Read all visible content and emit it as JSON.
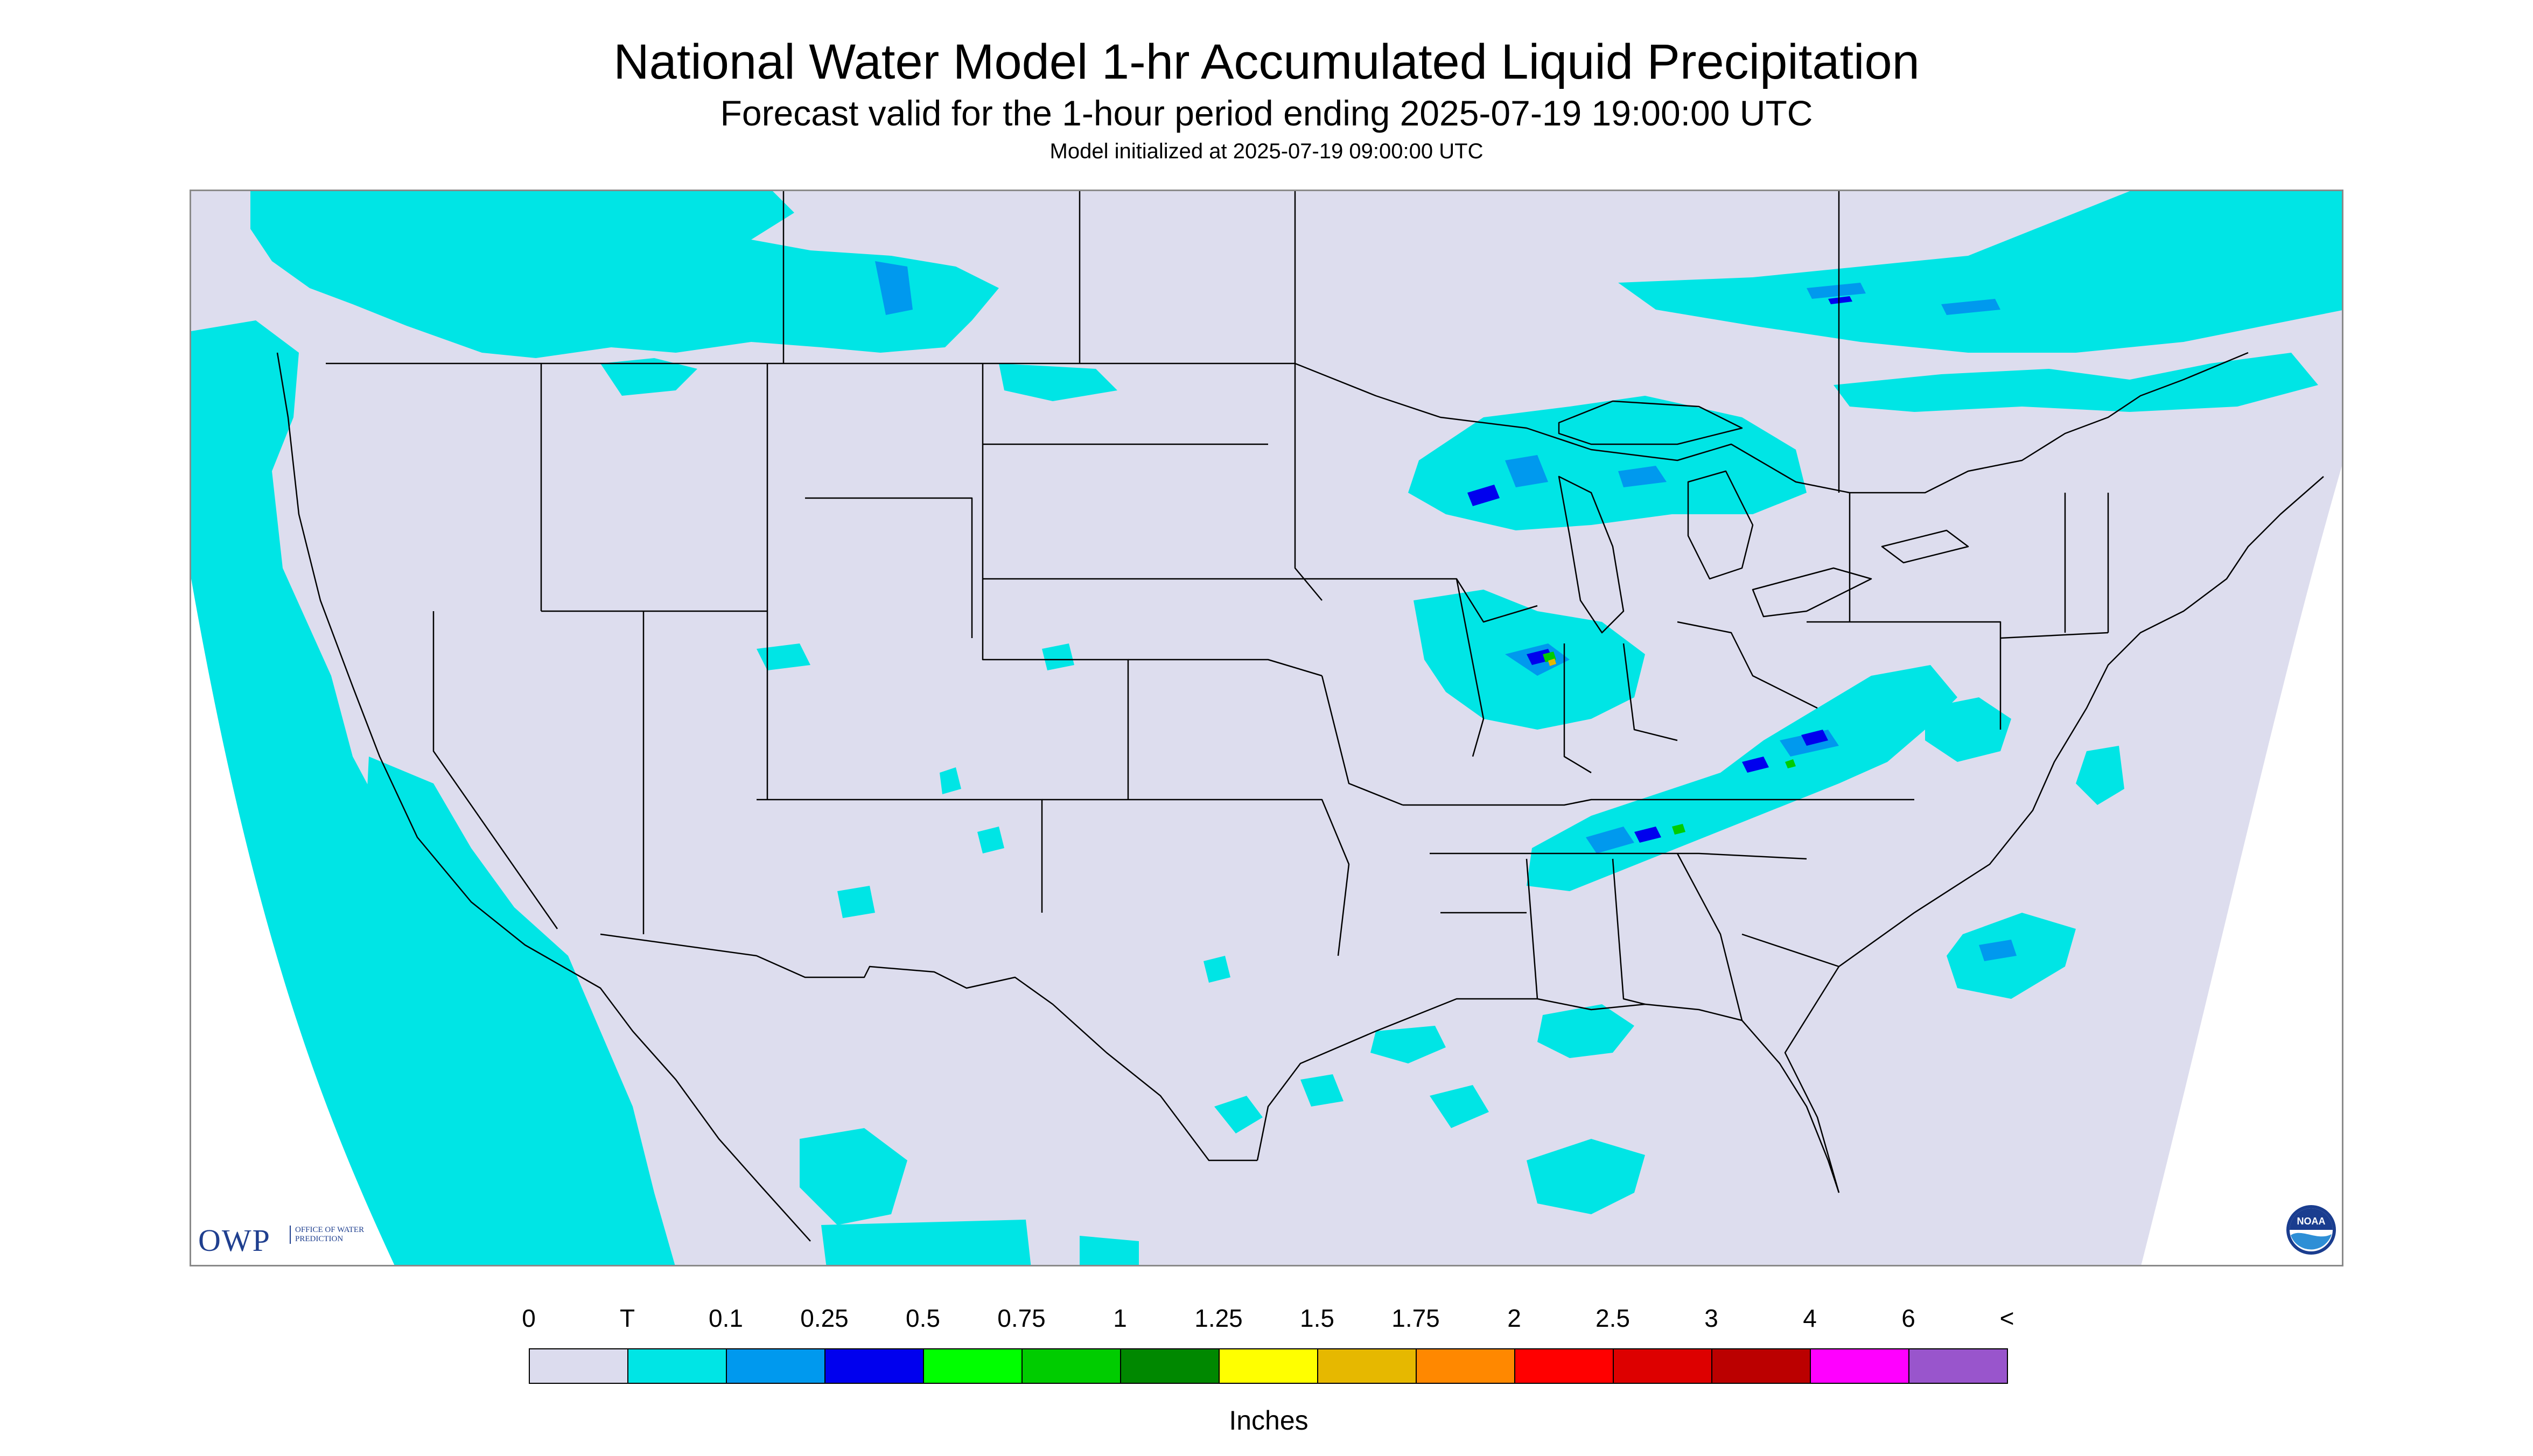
{
  "map": {
    "title": "National Water Model 1-hr Accumulated Liquid Precipitation",
    "subtitle": "Forecast valid for the 1-hour period ending 2025-07-19 19:00:00 UTC",
    "initialized": "Model initialized at 2025-07-19 09:00:00 UTC",
    "region": "CONUS",
    "background_color": "#ddddee",
    "outside_domain_color": "#ffffff",
    "boundary_color": "#000000"
  },
  "logos": {
    "owp_text": "OWP",
    "owp_subtext": "OFFICE OF WATER PREDICTION",
    "noaa_text": "NOAA"
  },
  "legend": {
    "units": "Inches",
    "labels": [
      "0",
      "T",
      "0.1",
      "0.25",
      "0.5",
      "0.75",
      "1",
      "1.25",
      "1.5",
      "1.75",
      "2",
      "2.5",
      "3",
      "4",
      "6",
      "<"
    ],
    "colors": [
      "#dcdcee",
      "#00e5e5",
      "#0099ee",
      "#0000ee",
      "#00ff00",
      "#00cc00",
      "#008800",
      "#ffff00",
      "#e6b800",
      "#ff8800",
      "#ff0000",
      "#dd0000",
      "#bb0000",
      "#ff00ff",
      "#9955cc"
    ]
  },
  "precip_areas": [
    {
      "name": "Pacific Northwest coast and offshore",
      "category": "T"
    },
    {
      "name": "Southern Canada prairies",
      "category": "T"
    },
    {
      "name": "Pacific Ocean off Baja California",
      "category": "T"
    },
    {
      "name": "Upper Great Lakes",
      "category": "0.25"
    },
    {
      "name": "Northern Illinois / Indiana",
      "category": "0.5"
    },
    {
      "name": "Ohio Valley to Mid-Atlantic",
      "category": "0.25"
    },
    {
      "name": "Tennessee / Alabama",
      "category": "0.75"
    },
    {
      "name": "Atlantic offshore",
      "category": "0.1"
    },
    {
      "name": "Gulf of Mexico",
      "category": "T"
    },
    {
      "name": "Quebec / Ontario",
      "category": "0.1"
    }
  ]
}
